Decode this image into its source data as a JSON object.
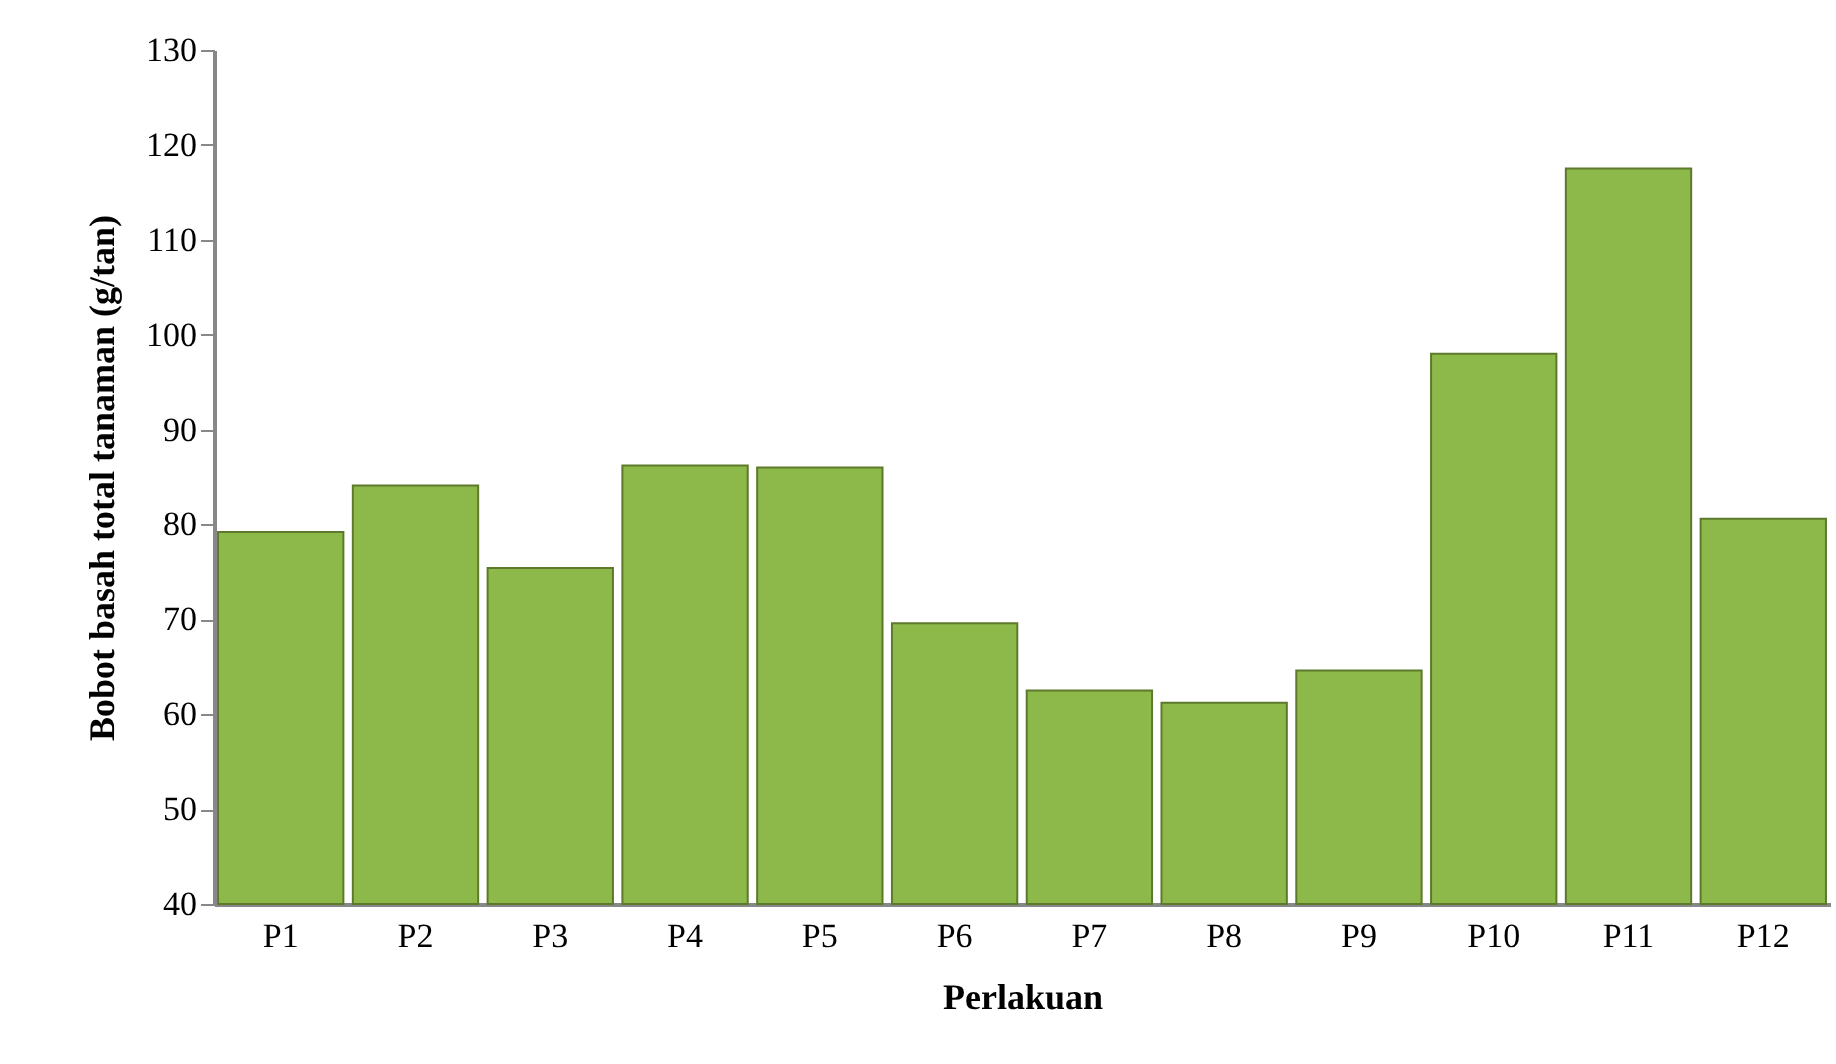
{
  "chart_data": {
    "type": "bar",
    "xlabel": "Perlakuan",
    "ylabel": "Bobot basah total tanaman (g/tan)",
    "categories": [
      "P1",
      "P2",
      "P3",
      "P4",
      "P5",
      "P6",
      "P7",
      "P8",
      "P9",
      "P10",
      "P11",
      "P12"
    ],
    "values": [
      79.2,
      84.1,
      75.4,
      86.2,
      86.0,
      69.6,
      62.5,
      61.2,
      64.6,
      98.0,
      117.5,
      80.6
    ],
    "color": "#8db84a",
    "ylim": [
      40,
      130
    ],
    "yticks": [
      40,
      50,
      60,
      70,
      80,
      90,
      100,
      110,
      120,
      130
    ],
    "grid": false
  }
}
